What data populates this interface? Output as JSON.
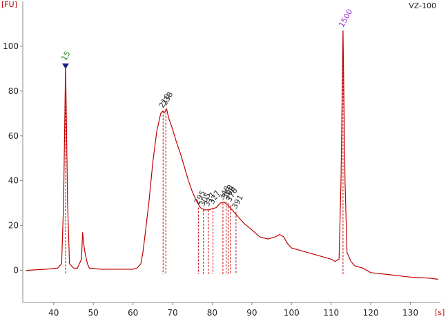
{
  "chart_data": {
    "type": "line",
    "title": "VZ-100",
    "y_label": "[FU]",
    "x_label": "[s]",
    "color": "#c00000",
    "xlim": [
      32.2,
      137.4
    ],
    "ylim": [
      -14,
      120
    ],
    "xticks": [
      40,
      50,
      60,
      70,
      80,
      90,
      100,
      110,
      120,
      130
    ],
    "yticks": [
      0,
      20,
      40,
      60,
      80,
      100
    ],
    "x": [
      33,
      38,
      41,
      42,
      42.5,
      43,
      43.5,
      44,
      45,
      46,
      47,
      47.3,
      47.7,
      48,
      48.5,
      49,
      52,
      56,
      60,
      61,
      62,
      62.5,
      63,
      64,
      65,
      66,
      67,
      67.5,
      68,
      68.5,
      69,
      70,
      71,
      72,
      73,
      74,
      75,
      76,
      77,
      78,
      79,
      80,
      81,
      82,
      83,
      84,
      85,
      86,
      87,
      88,
      90,
      92,
      94,
      96,
      97,
      98,
      99,
      100,
      102,
      104,
      106,
      108,
      110,
      111,
      112,
      112.5,
      113,
      113.5,
      114,
      115,
      116,
      118,
      120,
      125,
      130,
      135,
      137
    ],
    "values": [
      0,
      0.5,
      1,
      3,
      30,
      92,
      30,
      3,
      1,
      1,
      5,
      17,
      10,
      7,
      3,
      1,
      0.5,
      0.5,
      0.5,
      1,
      3,
      8,
      15,
      30,
      48,
      62,
      70,
      71,
      70.5,
      72,
      68,
      63,
      57,
      52,
      46,
      40,
      35,
      31,
      28,
      27,
      27,
      27.5,
      28,
      30,
      30.5,
      29,
      27,
      25,
      23,
      21,
      18,
      15,
      14,
      15,
      16,
      15,
      12,
      10,
      9,
      8,
      7,
      6,
      5,
      4,
      5,
      40,
      107,
      40,
      8,
      4,
      2,
      1,
      -1,
      -2,
      -3,
      -3.5,
      -4
    ],
    "peaks": [
      {
        "label": "15",
        "x": 43,
        "y": 92,
        "color": "#1e8a1e"
      },
      {
        "label": "210",
        "x": 67.6,
        "y": 71,
        "color": "#333333"
      },
      {
        "label": "238",
        "x": 68.3,
        "y": 72,
        "color": "#333333"
      },
      {
        "label": "295",
        "x": 76.5,
        "y": 28,
        "color": "#333333"
      },
      {
        "label": "305",
        "x": 77.8,
        "y": 27,
        "color": "#333333"
      },
      {
        "label": "317",
        "x": 79,
        "y": 27,
        "color": "#333333"
      },
      {
        "label": "327",
        "x": 80.2,
        "y": 28,
        "color": "#333333"
      },
      {
        "label": "348",
        "x": 82.7,
        "y": 30,
        "color": "#333333"
      },
      {
        "label": "360",
        "x": 83.5,
        "y": 30.5,
        "color": "#333333"
      },
      {
        "label": "366",
        "x": 84,
        "y": 30,
        "color": "#333333"
      },
      {
        "label": "376",
        "x": 84.6,
        "y": 29,
        "color": "#333333"
      },
      {
        "label": "391",
        "x": 86,
        "y": 26,
        "color": "#333333"
      },
      {
        "label": "1500",
        "x": 113,
        "y": 107,
        "color": "#9b30d0"
      }
    ]
  }
}
